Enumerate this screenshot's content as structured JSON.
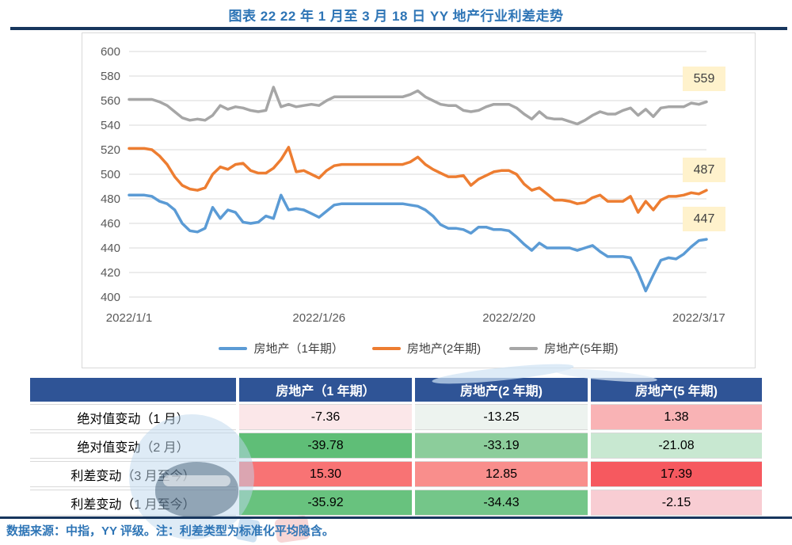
{
  "page": {
    "title": "图表 22  22 年 1 月至 3 月 18 日 YY 地产行业利差走势",
    "footer": "数据来源：中指，YY 评级。注：利差类型为标准化平均隐含。",
    "title_color": "#2E75B6",
    "divider_color": "#17365D"
  },
  "chart_data": {
    "type": "line",
    "title": "",
    "xlabel": "",
    "ylabel": "",
    "x_start": "2022/1/1",
    "x_end": "2022/3/18",
    "ylim": [
      400,
      600
    ],
    "y_step": 20,
    "grid": true,
    "legend_position": "bottom",
    "gridline_color": "#D9D9D9",
    "axis_text_color": "#595959",
    "x_ticks": [
      {
        "label": "2022/1/1",
        "day": 0
      },
      {
        "label": "2022/1/26",
        "day": 25
      },
      {
        "label": "2022/2/20",
        "day": 50
      },
      {
        "label": "2022/3/17",
        "day": 75
      }
    ],
    "end_label_bg": "#FFF2CC",
    "series": [
      {
        "name": "房地产（1年期）",
        "color": "#5B9BD5",
        "end_label": "447",
        "values": [
          483,
          483,
          483,
          482,
          478,
          476,
          471,
          460,
          454,
          453,
          456,
          473,
          464,
          471,
          469,
          461,
          460,
          461,
          466,
          464,
          483,
          471,
          472,
          471,
          468,
          465,
          470,
          475,
          476,
          476,
          476,
          476,
          476,
          476,
          476,
          476,
          476,
          475,
          474,
          471,
          466,
          459,
          456,
          456,
          455,
          452,
          457,
          457,
          455,
          455,
          454,
          449,
          443,
          438,
          444,
          440,
          440,
          440,
          440,
          438,
          440,
          442,
          437,
          433,
          433,
          433,
          432,
          420,
          405,
          418,
          430,
          432,
          431,
          435,
          441,
          446,
          447
        ]
      },
      {
        "name": "房地产(2年期)",
        "color": "#ED7D31",
        "end_label": "487",
        "values": [
          521,
          521,
          521,
          520,
          515,
          508,
          498,
          491,
          488,
          487,
          489,
          500,
          506,
          504,
          508,
          509,
          503,
          501,
          501,
          505,
          512,
          522,
          502,
          503,
          500,
          497,
          503,
          507,
          508,
          508,
          508,
          508,
          508,
          508,
          508,
          508,
          508,
          510,
          514,
          508,
          504,
          501,
          498,
          498,
          499,
          491,
          496,
          499,
          502,
          503,
          503,
          500,
          492,
          487,
          489,
          484,
          479,
          479,
          478,
          476,
          477,
          481,
          483,
          478,
          478,
          478,
          482,
          469,
          478,
          471,
          479,
          482,
          482,
          483,
          485,
          484,
          487
        ]
      },
      {
        "name": "房地产(5年期)",
        "color": "#A6A6A6",
        "end_label": "559",
        "values": [
          561,
          561,
          561,
          561,
          559,
          556,
          551,
          546,
          544,
          545,
          544,
          548,
          556,
          553,
          555,
          554,
          552,
          551,
          552,
          571,
          555,
          557,
          555,
          556,
          557,
          556,
          560,
          563,
          563,
          563,
          563,
          563,
          563,
          563,
          563,
          563,
          563,
          565,
          568,
          563,
          560,
          557,
          556,
          556,
          552,
          551,
          552,
          555,
          557,
          557,
          557,
          554,
          549,
          545,
          551,
          546,
          545,
          545,
          543,
          541,
          544,
          548,
          551,
          549,
          549,
          552,
          554,
          548,
          553,
          547,
          554,
          555,
          555,
          555,
          558,
          557,
          559
        ]
      }
    ]
  },
  "table": {
    "corner": "",
    "header_bg": "#2F5496",
    "columns": [
      "房地产（1 年期）",
      "房地产(2 年期)",
      "房地产(5 年期)"
    ],
    "rows": [
      {
        "label": "绝对值变动（1 月）",
        "values": [
          "-7.36",
          "-13.25",
          "1.38"
        ],
        "colors": [
          "#FBE7E9",
          "#EDF3EF",
          "#F9B3B5"
        ]
      },
      {
        "label": "绝对值变动（2 月）",
        "values": [
          "-39.78",
          "-33.19",
          "-21.08"
        ],
        "colors": [
          "#5FBE77",
          "#8CCD9B",
          "#C8E8D1"
        ]
      },
      {
        "label": "利差变动（3 月至今）",
        "values": [
          "15.30",
          "12.85",
          "17.39"
        ],
        "colors": [
          "#F87374",
          "#F98E8C",
          "#F6595F"
        ]
      },
      {
        "label": "利差变动（1 月至今）",
        "values": [
          "-35.92",
          "-34.43",
          "-2.15"
        ],
        "colors": [
          "#68C27E",
          "#74C689",
          "#F8CDD3"
        ]
      }
    ]
  }
}
